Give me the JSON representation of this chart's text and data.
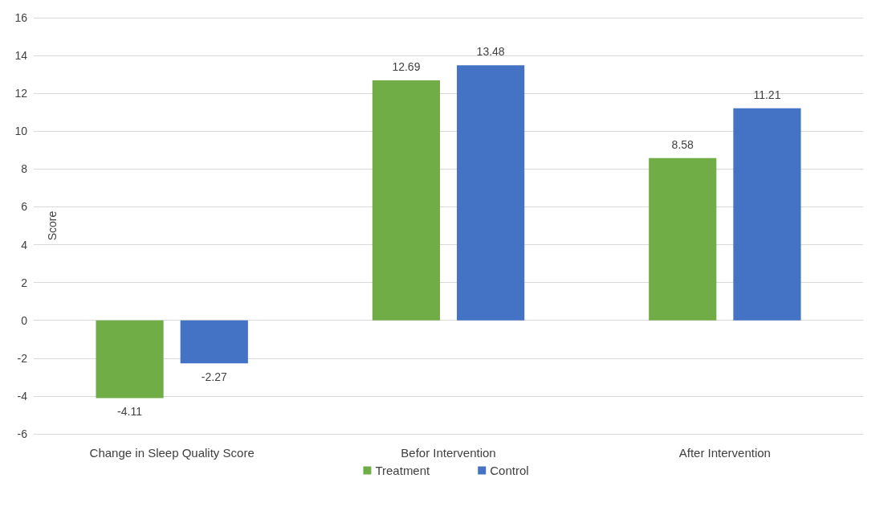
{
  "chart_data": {
    "type": "bar",
    "ylabel": "Score",
    "categories": [
      "Change in Sleep Quality Score",
      "Befor Intervention",
      "After Intervention"
    ],
    "series": [
      {
        "name": "Treatment",
        "color": "#70ad47",
        "values": [
          -4.11,
          12.69,
          8.58
        ]
      },
      {
        "name": "Control",
        "color": "#4472c4",
        "values": [
          -2.27,
          13.48,
          11.21
        ]
      }
    ],
    "ylim": [
      -6,
      16
    ],
    "yticks": [
      -6,
      -4,
      -2,
      0,
      2,
      4,
      6,
      8,
      10,
      12,
      14,
      16
    ],
    "grid": "y",
    "legend": "bottom",
    "data_labels": true
  }
}
